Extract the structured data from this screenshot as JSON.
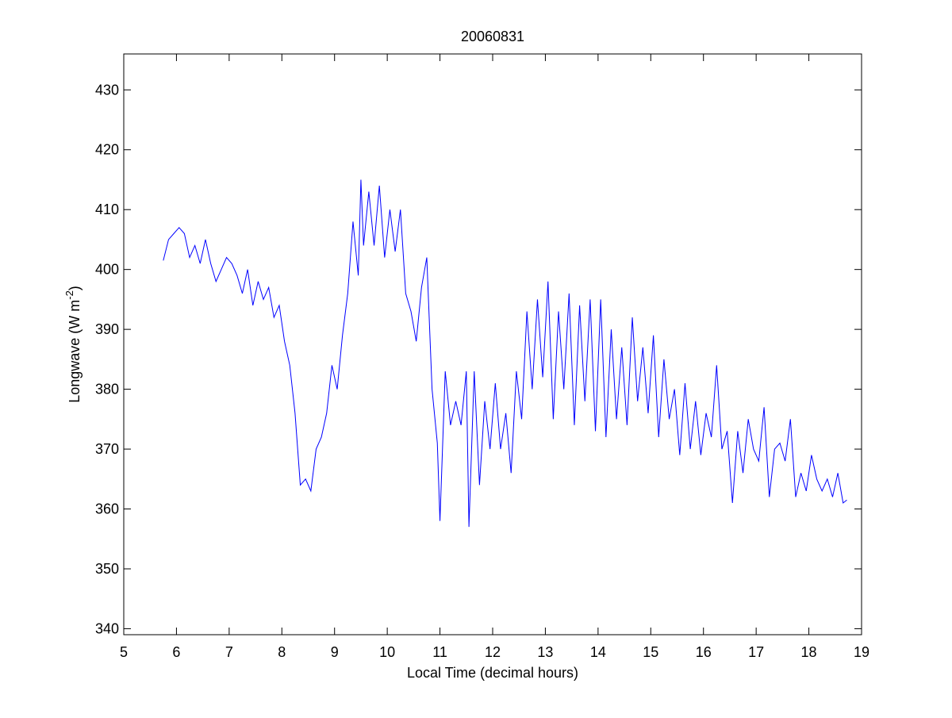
{
  "chart_data": {
    "type": "line",
    "title": "20060831",
    "xlabel": "Local Time (decimal hours)",
    "ylabel": [
      "Longwave (W m",
      "-2",
      ")"
    ],
    "color": "#0000ff",
    "x": [
      5.75,
      5.85,
      5.95,
      6.05,
      6.15,
      6.25,
      6.35,
      6.45,
      6.55,
      6.65,
      6.75,
      6.85,
      6.95,
      7.05,
      7.15,
      7.25,
      7.35,
      7.45,
      7.55,
      7.65,
      7.75,
      7.85,
      7.95,
      8.05,
      8.15,
      8.25,
      8.35,
      8.45,
      8.55,
      8.65,
      8.75,
      8.85,
      8.95,
      9.05,
      9.15,
      9.25,
      9.35,
      9.45,
      9.5,
      9.55,
      9.65,
      9.75,
      9.85,
      9.95,
      10.05,
      10.15,
      10.25,
      10.35,
      10.45,
      10.55,
      10.65,
      10.75,
      10.85,
      10.95,
      11.0,
      11.1,
      11.2,
      11.3,
      11.4,
      11.5,
      11.55,
      11.65,
      11.75,
      11.85,
      11.95,
      12.05,
      12.15,
      12.25,
      12.35,
      12.45,
      12.55,
      12.65,
      12.75,
      12.85,
      12.95,
      13.05,
      13.15,
      13.25,
      13.35,
      13.45,
      13.55,
      13.65,
      13.75,
      13.85,
      13.95,
      14.05,
      14.15,
      14.25,
      14.35,
      14.45,
      14.55,
      14.65,
      14.75,
      14.85,
      14.95,
      15.05,
      15.15,
      15.25,
      15.35,
      15.45,
      15.55,
      15.65,
      15.75,
      15.85,
      15.95,
      16.05,
      16.15,
      16.25,
      16.35,
      16.45,
      16.55,
      16.65,
      16.75,
      16.85,
      16.95,
      17.05,
      17.15,
      17.25,
      17.35,
      17.45,
      17.55,
      17.65,
      17.75,
      17.85,
      17.95,
      18.05,
      18.15,
      18.25,
      18.35,
      18.45,
      18.55,
      18.65,
      18.72
    ],
    "values": [
      401.5,
      405,
      406,
      407,
      406,
      402,
      404,
      401,
      405,
      401,
      398,
      400,
      402,
      401,
      399,
      396,
      400,
      394,
      398,
      395,
      397,
      392,
      394,
      388,
      384,
      376,
      364,
      365,
      363,
      370,
      372,
      376,
      384,
      380,
      389,
      396,
      408,
      399,
      415,
      404,
      413,
      404,
      414,
      402,
      410,
      403,
      410,
      396,
      393,
      388,
      397,
      402,
      380,
      371,
      358,
      383,
      374,
      378,
      374,
      383,
      357,
      383,
      364,
      378,
      370,
      381,
      370,
      376,
      366,
      383,
      375,
      393,
      380,
      395,
      382,
      398,
      375,
      393,
      380,
      396,
      374,
      394,
      378,
      395,
      373,
      395,
      372,
      390,
      375,
      387,
      374,
      392,
      378,
      387,
      376,
      389,
      372,
      385,
      375,
      380,
      369,
      381,
      370,
      378,
      369,
      376,
      372,
      384,
      370,
      373,
      361,
      373,
      366,
      375,
      370,
      368,
      377,
      362,
      370,
      371,
      368,
      375,
      362,
      366,
      363,
      369,
      365,
      363,
      365,
      362,
      366,
      361,
      361.5
    ],
    "xlim": [
      5,
      19
    ],
    "ylim": [
      339,
      436
    ],
    "xticks": [
      5,
      6,
      7,
      8,
      9,
      10,
      11,
      12,
      13,
      14,
      15,
      16,
      17,
      18,
      19
    ],
    "yticks": [
      340,
      350,
      360,
      370,
      380,
      390,
      400,
      410,
      420,
      430
    ]
  }
}
